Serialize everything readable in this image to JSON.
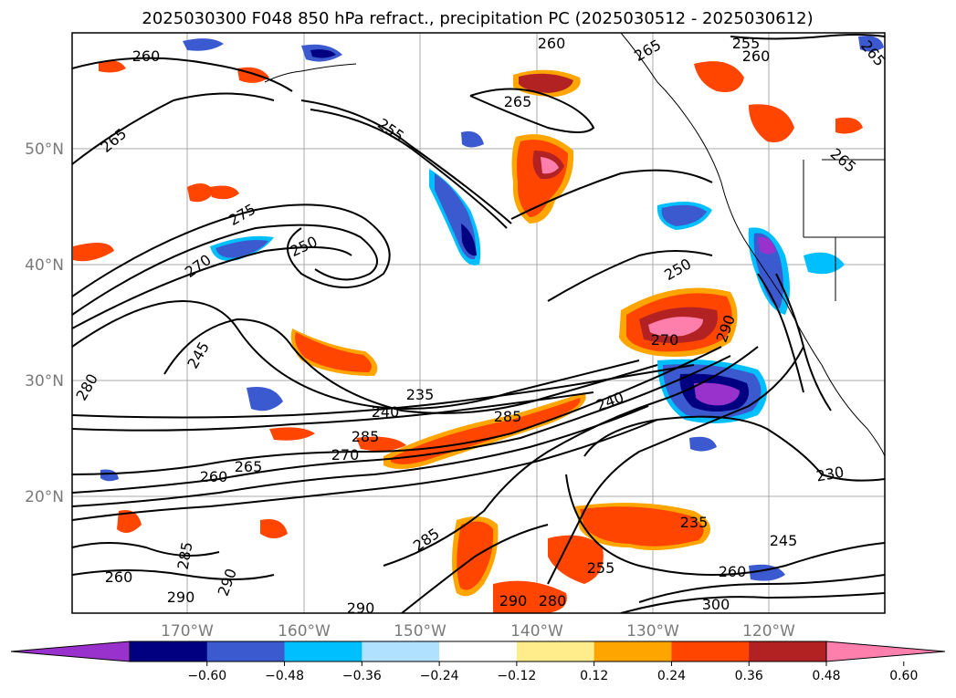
{
  "title": "2025030300 F048 850 hPa refract., precipitation PC (2025030512 - 2025030612)",
  "map": {
    "lat_labels": [
      "50°N",
      "40°N",
      "30°N",
      "20°N"
    ],
    "lon_labels": [
      "170°W",
      "160°W",
      "150°W",
      "140°W",
      "130°W",
      "120°W"
    ],
    "contour_labels": [
      "260",
      "255",
      "260",
      "265",
      "265",
      "265",
      "255",
      "260",
      "265",
      "265",
      "275",
      "250",
      "270",
      "245",
      "280",
      "235",
      "240",
      "285",
      "285",
      "265",
      "270",
      "240",
      "260",
      "230",
      "235",
      "245",
      "285",
      "255",
      "260",
      "290",
      "290",
      "290",
      "290",
      "300",
      "280",
      "260",
      "270",
      "290",
      "285",
      "250"
    ]
  },
  "colorbar": {
    "ticks": [
      "−0.60",
      "−0.48",
      "−0.36",
      "−0.24",
      "−0.12",
      "0.12",
      "0.24",
      "0.36",
      "0.48",
      "0.60"
    ],
    "colors": [
      "#9932cc",
      "#000080",
      "#3c5ad0",
      "#00bfff",
      "#b0e2ff",
      "#ffffff",
      "#ffec8b",
      "#ffa500",
      "#ff4500",
      "#b22222",
      "#ff7fac"
    ],
    "extend": "both"
  }
}
